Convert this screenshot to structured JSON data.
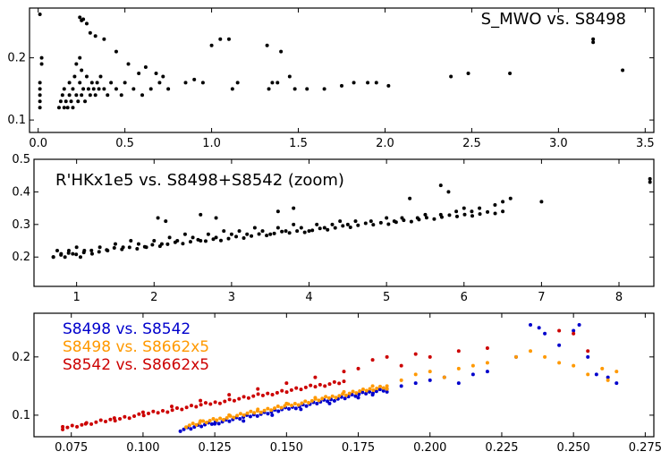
{
  "chart_data": [
    {
      "type": "scatter",
      "title": "S_MWO vs. S8498",
      "xlim": [
        -0.05,
        3.55
      ],
      "ylim": [
        0.08,
        0.28
      ],
      "xticks": [
        "0.0",
        "0.5",
        "1.0",
        "1.5",
        "2.0",
        "2.5",
        "3.0",
        "3.5"
      ],
      "xtick_values": [
        0.0,
        0.5,
        1.0,
        1.5,
        2.0,
        2.5,
        3.0,
        3.5
      ],
      "yticks": [
        "0.1",
        "0.2"
      ],
      "ytick_values": [
        0.1,
        0.2
      ],
      "legend": "top-right",
      "series": [
        {
          "color": "#000000",
          "points": [
            [
              0.01,
              0.27
            ],
            [
              0.01,
              0.16
            ],
            [
              0.01,
              0.15
            ],
            [
              0.01,
              0.14
            ],
            [
              0.01,
              0.13
            ],
            [
              0.01,
              0.12
            ],
            [
              0.02,
              0.2
            ],
            [
              0.02,
              0.19
            ],
            [
              0.12,
              0.12
            ],
            [
              0.13,
              0.13
            ],
            [
              0.14,
              0.14
            ],
            [
              0.15,
              0.12
            ],
            [
              0.15,
              0.15
            ],
            [
              0.16,
              0.13
            ],
            [
              0.17,
              0.12
            ],
            [
              0.18,
              0.14
            ],
            [
              0.18,
              0.16
            ],
            [
              0.19,
              0.13
            ],
            [
              0.2,
              0.15
            ],
            [
              0.2,
              0.12
            ],
            [
              0.21,
              0.17
            ],
            [
              0.22,
              0.14
            ],
            [
              0.22,
              0.19
            ],
            [
              0.23,
              0.13
            ],
            [
              0.24,
              0.16
            ],
            [
              0.24,
              0.2
            ],
            [
              0.25,
              0.14
            ],
            [
              0.25,
              0.18
            ],
            [
              0.26,
              0.15
            ],
            [
              0.27,
              0.13
            ],
            [
              0.28,
              0.17
            ],
            [
              0.29,
              0.15
            ],
            [
              0.3,
              0.14
            ],
            [
              0.31,
              0.16
            ],
            [
              0.32,
              0.15
            ],
            [
              0.33,
              0.14
            ],
            [
              0.34,
              0.16
            ],
            [
              0.35,
              0.15
            ],
            [
              0.36,
              0.17
            ],
            [
              0.38,
              0.15
            ],
            [
              0.4,
              0.14
            ],
            [
              0.42,
              0.16
            ],
            [
              0.45,
              0.15
            ],
            [
              0.48,
              0.14
            ],
            [
              0.5,
              0.16
            ],
            [
              0.55,
              0.15
            ],
            [
              0.6,
              0.14
            ],
            [
              0.65,
              0.15
            ],
            [
              0.7,
              0.16
            ],
            [
              0.75,
              0.15
            ],
            [
              0.24,
              0.265
            ],
            [
              0.25,
              0.26
            ],
            [
              0.26,
              0.262
            ],
            [
              0.28,
              0.255
            ],
            [
              0.3,
              0.24
            ],
            [
              0.33,
              0.235
            ],
            [
              0.38,
              0.23
            ],
            [
              0.45,
              0.21
            ],
            [
              0.52,
              0.19
            ],
            [
              0.58,
              0.175
            ],
            [
              0.62,
              0.185
            ],
            [
              0.68,
              0.175
            ],
            [
              0.72,
              0.17
            ],
            [
              0.85,
              0.16
            ],
            [
              0.9,
              0.165
            ],
            [
              0.95,
              0.16
            ],
            [
              1.05,
              0.23
            ],
            [
              1.1,
              0.23
            ],
            [
              1.12,
              0.15
            ],
            [
              1.15,
              0.16
            ],
            [
              1.0,
              0.22
            ],
            [
              1.32,
              0.22
            ],
            [
              1.33,
              0.15
            ],
            [
              1.35,
              0.16
            ],
            [
              1.4,
              0.21
            ],
            [
              1.38,
              0.16
            ],
            [
              1.45,
              0.17
            ],
            [
              1.48,
              0.15
            ],
            [
              1.55,
              0.15
            ],
            [
              1.65,
              0.15
            ],
            [
              1.75,
              0.155
            ],
            [
              1.82,
              0.16
            ],
            [
              1.9,
              0.16
            ],
            [
              1.95,
              0.16
            ],
            [
              2.02,
              0.155
            ],
            [
              2.38,
              0.17
            ],
            [
              2.48,
              0.175
            ],
            [
              2.72,
              0.175
            ],
            [
              3.2,
              0.225
            ],
            [
              3.2,
              0.23
            ],
            [
              3.37,
              0.18
            ]
          ]
        }
      ]
    },
    {
      "type": "scatter",
      "title": "R'HKx1e5 vs. S8498+S8542 (zoom)",
      "xlim": [
        0.45,
        8.45
      ],
      "ylim": [
        0.11,
        0.5
      ],
      "xticks": [
        "1",
        "2",
        "3",
        "4",
        "5",
        "6",
        "7",
        "8"
      ],
      "xtick_values": [
        1,
        2,
        3,
        4,
        5,
        6,
        7,
        8
      ],
      "yticks": [
        "0.2",
        "0.3",
        "0.4",
        "0.5"
      ],
      "ytick_values": [
        0.2,
        0.3,
        0.4,
        0.5
      ],
      "legend": "top-left",
      "series": [
        {
          "color": "#000000",
          "trend": {
            "x0": 0.7,
            "x1": 6.5,
            "y0": 0.205,
            "y1": 0.34
          },
          "points": [
            [
              0.7,
              0.2
            ],
            [
              0.75,
              0.22
            ],
            [
              0.8,
              0.21
            ],
            [
              0.85,
              0.2
            ],
            [
              0.9,
              0.22
            ],
            [
              0.95,
              0.21
            ],
            [
              1.0,
              0.23
            ],
            [
              1.05,
              0.2
            ],
            [
              1.1,
              0.22
            ],
            [
              1.2,
              0.21
            ],
            [
              1.3,
              0.23
            ],
            [
              1.4,
              0.22
            ],
            [
              1.5,
              0.24
            ],
            [
              1.6,
              0.23
            ],
            [
              1.7,
              0.25
            ],
            [
              1.8,
              0.24
            ],
            [
              1.9,
              0.23
            ],
            [
              2.0,
              0.25
            ],
            [
              2.1,
              0.24
            ],
            [
              2.2,
              0.26
            ],
            [
              2.3,
              0.25
            ],
            [
              2.4,
              0.27
            ],
            [
              2.5,
              0.26
            ],
            [
              2.6,
              0.25
            ],
            [
              2.7,
              0.27
            ],
            [
              2.8,
              0.26
            ],
            [
              2.9,
              0.28
            ],
            [
              3.0,
              0.27
            ],
            [
              3.1,
              0.28
            ],
            [
              3.2,
              0.27
            ],
            [
              3.3,
              0.29
            ],
            [
              3.4,
              0.28
            ],
            [
              3.5,
              0.27
            ],
            [
              3.6,
              0.29
            ],
            [
              3.7,
              0.28
            ],
            [
              3.8,
              0.3
            ],
            [
              3.9,
              0.29
            ],
            [
              4.0,
              0.28
            ],
            [
              4.1,
              0.3
            ],
            [
              4.2,
              0.29
            ],
            [
              4.3,
              0.3
            ],
            [
              4.4,
              0.31
            ],
            [
              4.5,
              0.3
            ],
            [
              4.6,
              0.31
            ],
            [
              4.8,
              0.31
            ],
            [
              5.0,
              0.32
            ],
            [
              5.1,
              0.31
            ],
            [
              5.2,
              0.32
            ],
            [
              5.4,
              0.32
            ],
            [
              5.5,
              0.33
            ],
            [
              5.7,
              0.33
            ],
            [
              5.9,
              0.34
            ],
            [
              6.1,
              0.34
            ],
            [
              6.2,
              0.35
            ],
            [
              6.4,
              0.36
            ],
            [
              6.5,
              0.37
            ],
            [
              2.05,
              0.32
            ],
            [
              2.15,
              0.31
            ],
            [
              2.6,
              0.33
            ],
            [
              2.8,
              0.32
            ],
            [
              3.6,
              0.34
            ],
            [
              3.8,
              0.35
            ],
            [
              5.3,
              0.38
            ],
            [
              5.7,
              0.42
            ],
            [
              5.8,
              0.4
            ],
            [
              6.0,
              0.35
            ],
            [
              6.6,
              0.38
            ],
            [
              7.0,
              0.37
            ],
            [
              8.4,
              0.44
            ],
            [
              8.4,
              0.43
            ]
          ]
        }
      ]
    },
    {
      "type": "scatter",
      "xlim": [
        0.062,
        0.278
      ],
      "ylim": [
        0.063,
        0.275
      ],
      "xticks": [
        "0.075",
        "0.100",
        "0.125",
        "0.150",
        "0.175",
        "0.200",
        "0.225",
        "0.250",
        "0.275"
      ],
      "xtick_values": [
        0.075,
        0.1,
        0.125,
        0.15,
        0.175,
        0.2,
        0.225,
        0.25,
        0.275
      ],
      "yticks": [
        "0.1",
        "0.2"
      ],
      "ytick_values": [
        0.1,
        0.2
      ],
      "legend": "top-left",
      "series": [
        {
          "name": "S8498 vs. S8542",
          "color": "#0000cc",
          "trend": {
            "x0": 0.113,
            "x1": 0.185,
            "y0": 0.075,
            "y1": 0.145
          },
          "points": [
            [
              0.125,
              0.085
            ],
            [
              0.135,
              0.09
            ],
            [
              0.145,
              0.1
            ],
            [
              0.155,
              0.11
            ],
            [
              0.165,
              0.12
            ],
            [
              0.175,
              0.13
            ],
            [
              0.18,
              0.135
            ],
            [
              0.185,
              0.14
            ],
            [
              0.19,
              0.15
            ],
            [
              0.195,
              0.155
            ],
            [
              0.2,
              0.16
            ],
            [
              0.205,
              0.165
            ],
            [
              0.21,
              0.155
            ],
            [
              0.215,
              0.17
            ],
            [
              0.22,
              0.175
            ],
            [
              0.23,
              0.2
            ],
            [
              0.235,
              0.255
            ],
            [
              0.238,
              0.25
            ],
            [
              0.24,
              0.24
            ],
            [
              0.245,
              0.22
            ],
            [
              0.25,
              0.245
            ],
            [
              0.252,
              0.255
            ],
            [
              0.255,
              0.2
            ],
            [
              0.258,
              0.17
            ],
            [
              0.262,
              0.165
            ],
            [
              0.265,
              0.155
            ]
          ]
        },
        {
          "name": "S8498 vs. S8662x5",
          "color": "#ff9900",
          "trend": {
            "x0": 0.115,
            "x1": 0.185,
            "y0": 0.082,
            "y1": 0.15
          },
          "points": [
            [
              0.12,
              0.09
            ],
            [
              0.13,
              0.1
            ],
            [
              0.14,
              0.11
            ],
            [
              0.15,
              0.12
            ],
            [
              0.16,
              0.13
            ],
            [
              0.17,
              0.14
            ],
            [
              0.18,
              0.15
            ],
            [
              0.185,
              0.145
            ],
            [
              0.19,
              0.16
            ],
            [
              0.195,
              0.17
            ],
            [
              0.2,
              0.175
            ],
            [
              0.205,
              0.165
            ],
            [
              0.21,
              0.18
            ],
            [
              0.215,
              0.185
            ],
            [
              0.22,
              0.19
            ],
            [
              0.23,
              0.2
            ],
            [
              0.235,
              0.21
            ],
            [
              0.24,
              0.2
            ],
            [
              0.245,
              0.19
            ],
            [
              0.25,
              0.185
            ],
            [
              0.255,
              0.17
            ],
            [
              0.26,
              0.18
            ],
            [
              0.262,
              0.16
            ],
            [
              0.265,
              0.175
            ]
          ]
        },
        {
          "name": "S8542 vs. S8662x5",
          "color": "#cc0000",
          "trend": {
            "x0": 0.072,
            "x1": 0.17,
            "y0": 0.078,
            "y1": 0.158
          },
          "points": [
            [
              0.072,
              0.08
            ],
            [
              0.08,
              0.085
            ],
            [
              0.09,
              0.095
            ],
            [
              0.1,
              0.105
            ],
            [
              0.11,
              0.115
            ],
            [
              0.12,
              0.125
            ],
            [
              0.13,
              0.135
            ],
            [
              0.14,
              0.145
            ],
            [
              0.15,
              0.155
            ],
            [
              0.16,
              0.165
            ],
            [
              0.17,
              0.175
            ],
            [
              0.175,
              0.18
            ],
            [
              0.18,
              0.195
            ],
            [
              0.185,
              0.2
            ],
            [
              0.19,
              0.185
            ],
            [
              0.195,
              0.205
            ],
            [
              0.2,
              0.2
            ],
            [
              0.21,
              0.21
            ],
            [
              0.22,
              0.215
            ],
            [
              0.245,
              0.245
            ],
            [
              0.25,
              0.24
            ],
            [
              0.255,
              0.21
            ]
          ]
        }
      ]
    }
  ]
}
